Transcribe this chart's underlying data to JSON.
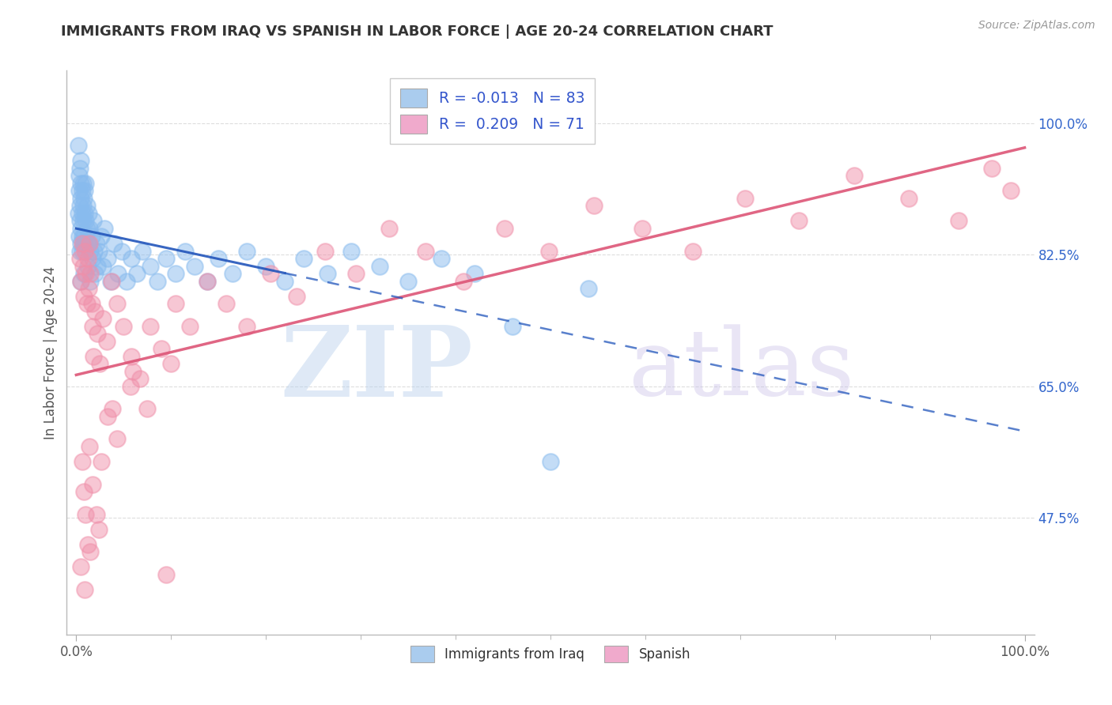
{
  "title": "IMMIGRANTS FROM IRAQ VS SPANISH IN LABOR FORCE | AGE 20-24 CORRELATION CHART",
  "source": "Source: ZipAtlas.com",
  "ylabel": "In Labor Force | Age 20-24",
  "iraq_color": "#88bbee",
  "spanish_color": "#f090aa",
  "iraq_line_color": "#2255bb",
  "spanish_line_color": "#dd5577",
  "background_color": "#ffffff",
  "grid_color": "#dddddd",
  "ytick_positions": [
    0.475,
    0.65,
    0.825,
    1.0
  ],
  "ytick_labels": [
    "47.5%",
    "65.0%",
    "82.5%",
    "100.0%"
  ],
  "xtick_positions": [
    0.0,
    1.0
  ],
  "xtick_labels": [
    "0.0%",
    "100.0%"
  ],
  "xlim": [
    -0.01,
    1.01
  ],
  "ylim": [
    0.32,
    1.07
  ],
  "iraq_x": [
    0.002,
    0.002,
    0.003,
    0.003,
    0.003,
    0.004,
    0.004,
    0.004,
    0.004,
    0.005,
    0.005,
    0.005,
    0.005,
    0.005,
    0.005,
    0.006,
    0.006,
    0.006,
    0.006,
    0.007,
    0.007,
    0.007,
    0.007,
    0.008,
    0.008,
    0.008,
    0.009,
    0.009,
    0.009,
    0.01,
    0.01,
    0.01,
    0.011,
    0.011,
    0.012,
    0.012,
    0.013,
    0.013,
    0.014,
    0.015,
    0.015,
    0.016,
    0.017,
    0.018,
    0.019,
    0.02,
    0.021,
    0.022,
    0.024,
    0.026,
    0.028,
    0.03,
    0.033,
    0.036,
    0.04,
    0.044,
    0.048,
    0.053,
    0.058,
    0.064,
    0.07,
    0.078,
    0.086,
    0.095,
    0.105,
    0.115,
    0.125,
    0.138,
    0.15,
    0.165,
    0.18,
    0.2,
    0.22,
    0.24,
    0.265,
    0.29,
    0.32,
    0.35,
    0.385,
    0.42,
    0.46,
    0.5,
    0.54
  ],
  "iraq_y": [
    0.97,
    0.88,
    0.91,
    0.85,
    0.93,
    0.89,
    0.94,
    0.87,
    0.83,
    0.92,
    0.86,
    0.9,
    0.84,
    0.79,
    0.95,
    0.88,
    0.83,
    0.91,
    0.85,
    0.89,
    0.84,
    0.92,
    0.87,
    0.9,
    0.85,
    0.8,
    0.88,
    0.84,
    0.91,
    0.87,
    0.83,
    0.92,
    0.86,
    0.89,
    0.84,
    0.81,
    0.88,
    0.84,
    0.86,
    0.83,
    0.79,
    0.85,
    0.82,
    0.87,
    0.83,
    0.8,
    0.84,
    0.81,
    0.83,
    0.85,
    0.81,
    0.86,
    0.82,
    0.79,
    0.84,
    0.8,
    0.83,
    0.79,
    0.82,
    0.8,
    0.83,
    0.81,
    0.79,
    0.82,
    0.8,
    0.83,
    0.81,
    0.79,
    0.82,
    0.8,
    0.83,
    0.81,
    0.79,
    0.82,
    0.8,
    0.83,
    0.81,
    0.79,
    0.82,
    0.8,
    0.73,
    0.55,
    0.78
  ],
  "spanish_x": [
    0.004,
    0.005,
    0.006,
    0.007,
    0.008,
    0.009,
    0.01,
    0.011,
    0.012,
    0.013,
    0.014,
    0.015,
    0.016,
    0.017,
    0.018,
    0.02,
    0.022,
    0.025,
    0.028,
    0.032,
    0.037,
    0.043,
    0.05,
    0.058,
    0.067,
    0.078,
    0.09,
    0.105,
    0.12,
    0.138,
    0.158,
    0.18,
    0.205,
    0.232,
    0.262,
    0.295,
    0.33,
    0.368,
    0.408,
    0.452,
    0.498,
    0.546,
    0.597,
    0.65,
    0.705,
    0.762,
    0.82,
    0.878,
    0.93,
    0.965,
    0.985,
    0.006,
    0.008,
    0.01,
    0.012,
    0.014,
    0.017,
    0.021,
    0.026,
    0.033,
    0.043,
    0.057,
    0.075,
    0.1,
    0.005,
    0.009,
    0.015,
    0.024,
    0.038,
    0.06,
    0.095
  ],
  "spanish_y": [
    0.82,
    0.79,
    0.84,
    0.81,
    0.77,
    0.83,
    0.8,
    0.76,
    0.82,
    0.78,
    0.84,
    0.8,
    0.76,
    0.73,
    0.69,
    0.75,
    0.72,
    0.68,
    0.74,
    0.71,
    0.79,
    0.76,
    0.73,
    0.69,
    0.66,
    0.73,
    0.7,
    0.76,
    0.73,
    0.79,
    0.76,
    0.73,
    0.8,
    0.77,
    0.83,
    0.8,
    0.86,
    0.83,
    0.79,
    0.86,
    0.83,
    0.89,
    0.86,
    0.83,
    0.9,
    0.87,
    0.93,
    0.9,
    0.87,
    0.94,
    0.91,
    0.55,
    0.51,
    0.48,
    0.44,
    0.57,
    0.52,
    0.48,
    0.55,
    0.61,
    0.58,
    0.65,
    0.62,
    0.68,
    0.41,
    0.38,
    0.43,
    0.46,
    0.62,
    0.67,
    0.4
  ]
}
